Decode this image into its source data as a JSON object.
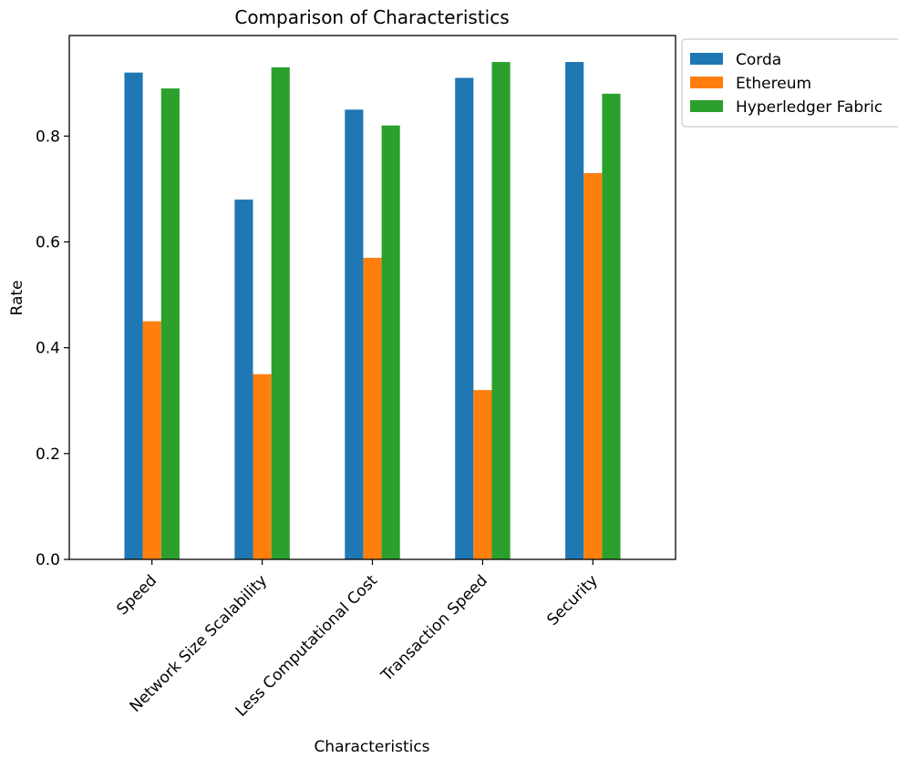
{
  "chart_data": {
    "type": "bar",
    "title": "Comparison of Characteristics",
    "xlabel": "Characteristics",
    "ylabel": "Rate",
    "categories": [
      "Speed",
      "Network Size Scalability",
      "Less Computational Cost",
      "Transaction Speed",
      "Security"
    ],
    "series": [
      {
        "name": "Corda",
        "color": "#1f77b4",
        "values": [
          0.92,
          0.68,
          0.85,
          0.91,
          0.94
        ]
      },
      {
        "name": "Ethereum",
        "color": "#ff7f0e",
        "values": [
          0.45,
          0.35,
          0.57,
          0.32,
          0.73
        ]
      },
      {
        "name": "Hyperledger Fabric",
        "color": "#2ca02c",
        "values": [
          0.89,
          0.93,
          0.82,
          0.94,
          0.88
        ]
      }
    ],
    "ylim": [
      0,
      0.99
    ],
    "yticks": [
      "0.0",
      "0.2",
      "0.4",
      "0.6",
      "0.8"
    ],
    "grid": false,
    "legend": "outside-top-right"
  }
}
